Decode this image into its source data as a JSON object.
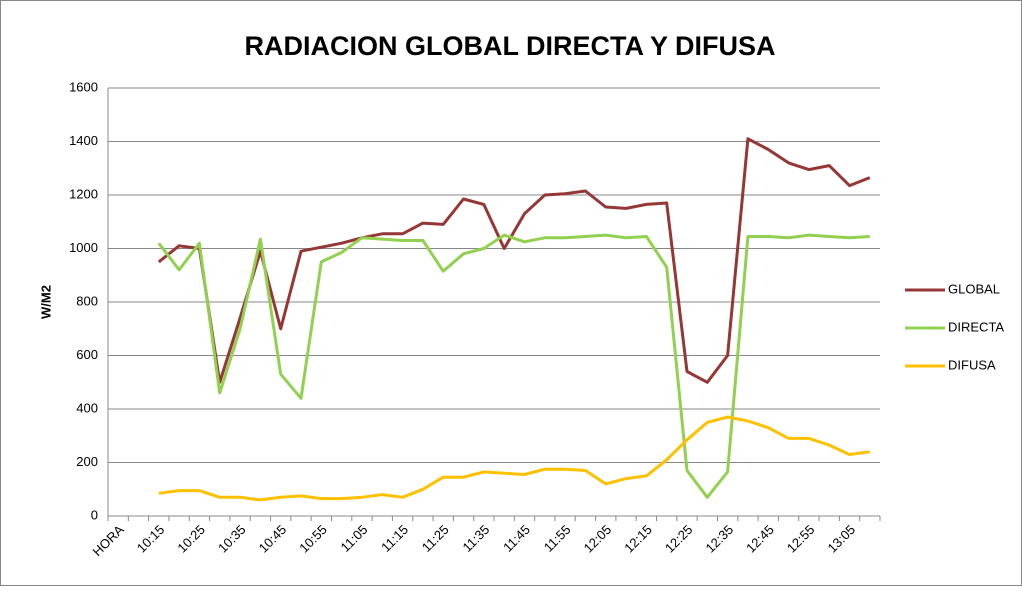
{
  "chart_data": {
    "type": "line",
    "title": "RADIACION GLOBAL DIRECTA Y DIFUSA",
    "y_label": "W/M2",
    "categories": [
      "HORA",
      null,
      "10:15",
      null,
      "10:25",
      null,
      "10:35",
      null,
      "10:45",
      null,
      "10:55",
      null,
      "11:05",
      null,
      "11:15",
      null,
      "11:25",
      null,
      "11:35",
      null,
      "11:45",
      null,
      "11:55",
      null,
      "12:05",
      null,
      "12:15",
      null,
      "12:25",
      null,
      "12:35",
      null,
      "12:45",
      null,
      "12:55",
      null,
      "13:05",
      null
    ],
    "series": [
      {
        "name": "GLOBAL",
        "color": "#953735",
        "values": [
          null,
          null,
          950,
          1010,
          1000,
          500,
          740,
          990,
          700,
          990,
          1005,
          1020,
          1040,
          1055,
          1055,
          1095,
          1090,
          1185,
          1165,
          1000,
          1130,
          1200,
          1205,
          1215,
          1155,
          1150,
          1165,
          1170,
          540,
          500,
          600,
          1410,
          1370,
          1320,
          1295,
          1310,
          1235,
          1265
        ]
      },
      {
        "name": "DIRECTA",
        "color": "#92d050",
        "values": [
          null,
          null,
          1020,
          920,
          1020,
          460,
          700,
          1035,
          530,
          440,
          950,
          985,
          1040,
          1035,
          1030,
          1030,
          915,
          980,
          1000,
          1050,
          1025,
          1040,
          1040,
          1045,
          1050,
          1040,
          1045,
          930,
          170,
          70,
          165,
          1045,
          1045,
          1040,
          1050,
          1045,
          1040,
          1045
        ]
      },
      {
        "name": "DIFUSA",
        "color": "#ffc000",
        "values": [
          null,
          null,
          85,
          95,
          95,
          70,
          70,
          60,
          70,
          75,
          65,
          65,
          70,
          80,
          70,
          100,
          145,
          145,
          165,
          160,
          155,
          175,
          175,
          170,
          120,
          140,
          150,
          210,
          285,
          350,
          370,
          355,
          330,
          290,
          290,
          265,
          230,
          240
        ]
      }
    ],
    "ylim": [
      0,
      1600
    ],
    "yticks": [
      0,
      200,
      400,
      600,
      800,
      1000,
      1200,
      1400,
      1600
    ],
    "grid": true,
    "legend": "right"
  }
}
